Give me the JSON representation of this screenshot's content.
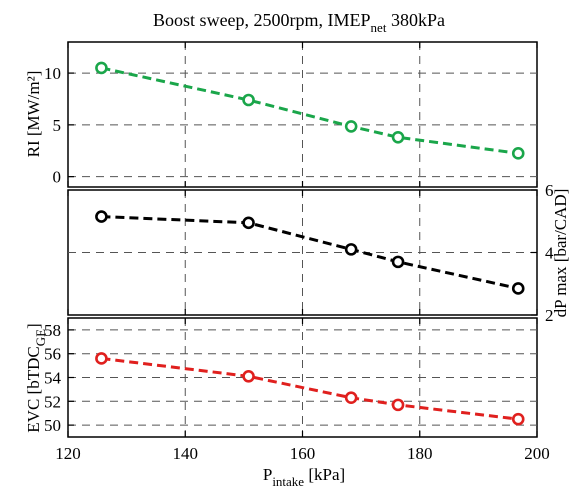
{
  "title": {
    "main": "Boost sweep, 2500rpm, IMEP",
    "sub": "net",
    "tail": " 380kPa"
  },
  "x_axis": {
    "label_main": "P",
    "label_sub": "intake",
    "label_tail": " [kPa]",
    "ticks": [
      120,
      140,
      160,
      180,
      200
    ]
  },
  "chart_data": [
    {
      "type": "line",
      "panel": "top",
      "ylabel": "RI  [MW/m²]",
      "xlim": [
        120,
        200
      ],
      "ylim": [
        -1,
        13
      ],
      "yticks": [
        0,
        5,
        10
      ],
      "grid": true,
      "color": "#1aa64a",
      "series": [
        {
          "x": [
            125.7,
            150.8,
            168.3,
            176.3,
            196.8
          ],
          "y": [
            10.5,
            7.4,
            4.85,
            3.8,
            2.25
          ]
        }
      ]
    },
    {
      "type": "line",
      "panel": "middle",
      "ylabel": "dP max [bar/CAD]",
      "y_axis_side": "right",
      "xlim": [
        120,
        200
      ],
      "ylim": [
        2,
        6
      ],
      "yticks": [
        2,
        4,
        6
      ],
      "grid": true,
      "color": "#000000",
      "series": [
        {
          "x": [
            125.7,
            150.8,
            168.3,
            176.3,
            196.8
          ],
          "y": [
            5.15,
            4.95,
            4.1,
            3.7,
            2.85
          ]
        }
      ]
    },
    {
      "type": "line",
      "panel": "bottom",
      "ylabel_main": "EVC  [bTDC",
      "ylabel_sub": "GE",
      "ylabel_tail": "]",
      "xlim": [
        120,
        200
      ],
      "ylim": [
        49,
        59
      ],
      "yticks": [
        50,
        52,
        54,
        56,
        58
      ],
      "grid": true,
      "color": "#e0201e",
      "series": [
        {
          "x": [
            125.7,
            150.8,
            168.3,
            176.3,
            196.8
          ],
          "y": [
            55.6,
            54.1,
            52.3,
            51.7,
            50.5
          ]
        }
      ]
    }
  ]
}
